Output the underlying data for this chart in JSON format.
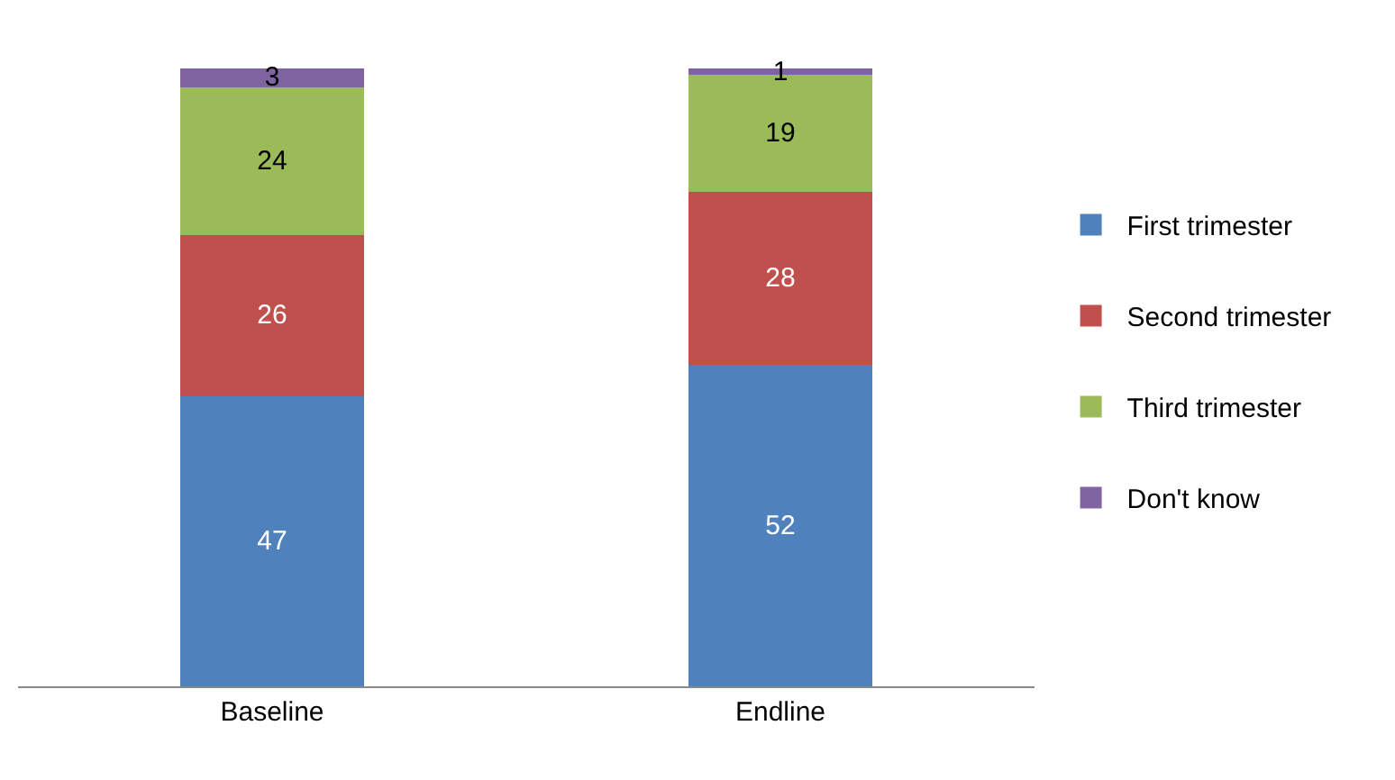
{
  "chart_data": {
    "type": "bar",
    "stacked": true,
    "categories": [
      "Baseline",
      "Endline"
    ],
    "series": [
      {
        "name": "First trimester",
        "color": "#4f81bd",
        "values": [
          47,
          52
        ]
      },
      {
        "name": "Second trimester",
        "color": "#c0504d",
        "values": [
          26,
          28
        ]
      },
      {
        "name": "Third trimester",
        "color": "#9bbb59",
        "values": [
          24,
          19
        ]
      },
      {
        "name": "Don't know",
        "color": "#8064a2",
        "values": [
          3,
          1
        ]
      }
    ],
    "data_labels": true,
    "legend": "right"
  }
}
